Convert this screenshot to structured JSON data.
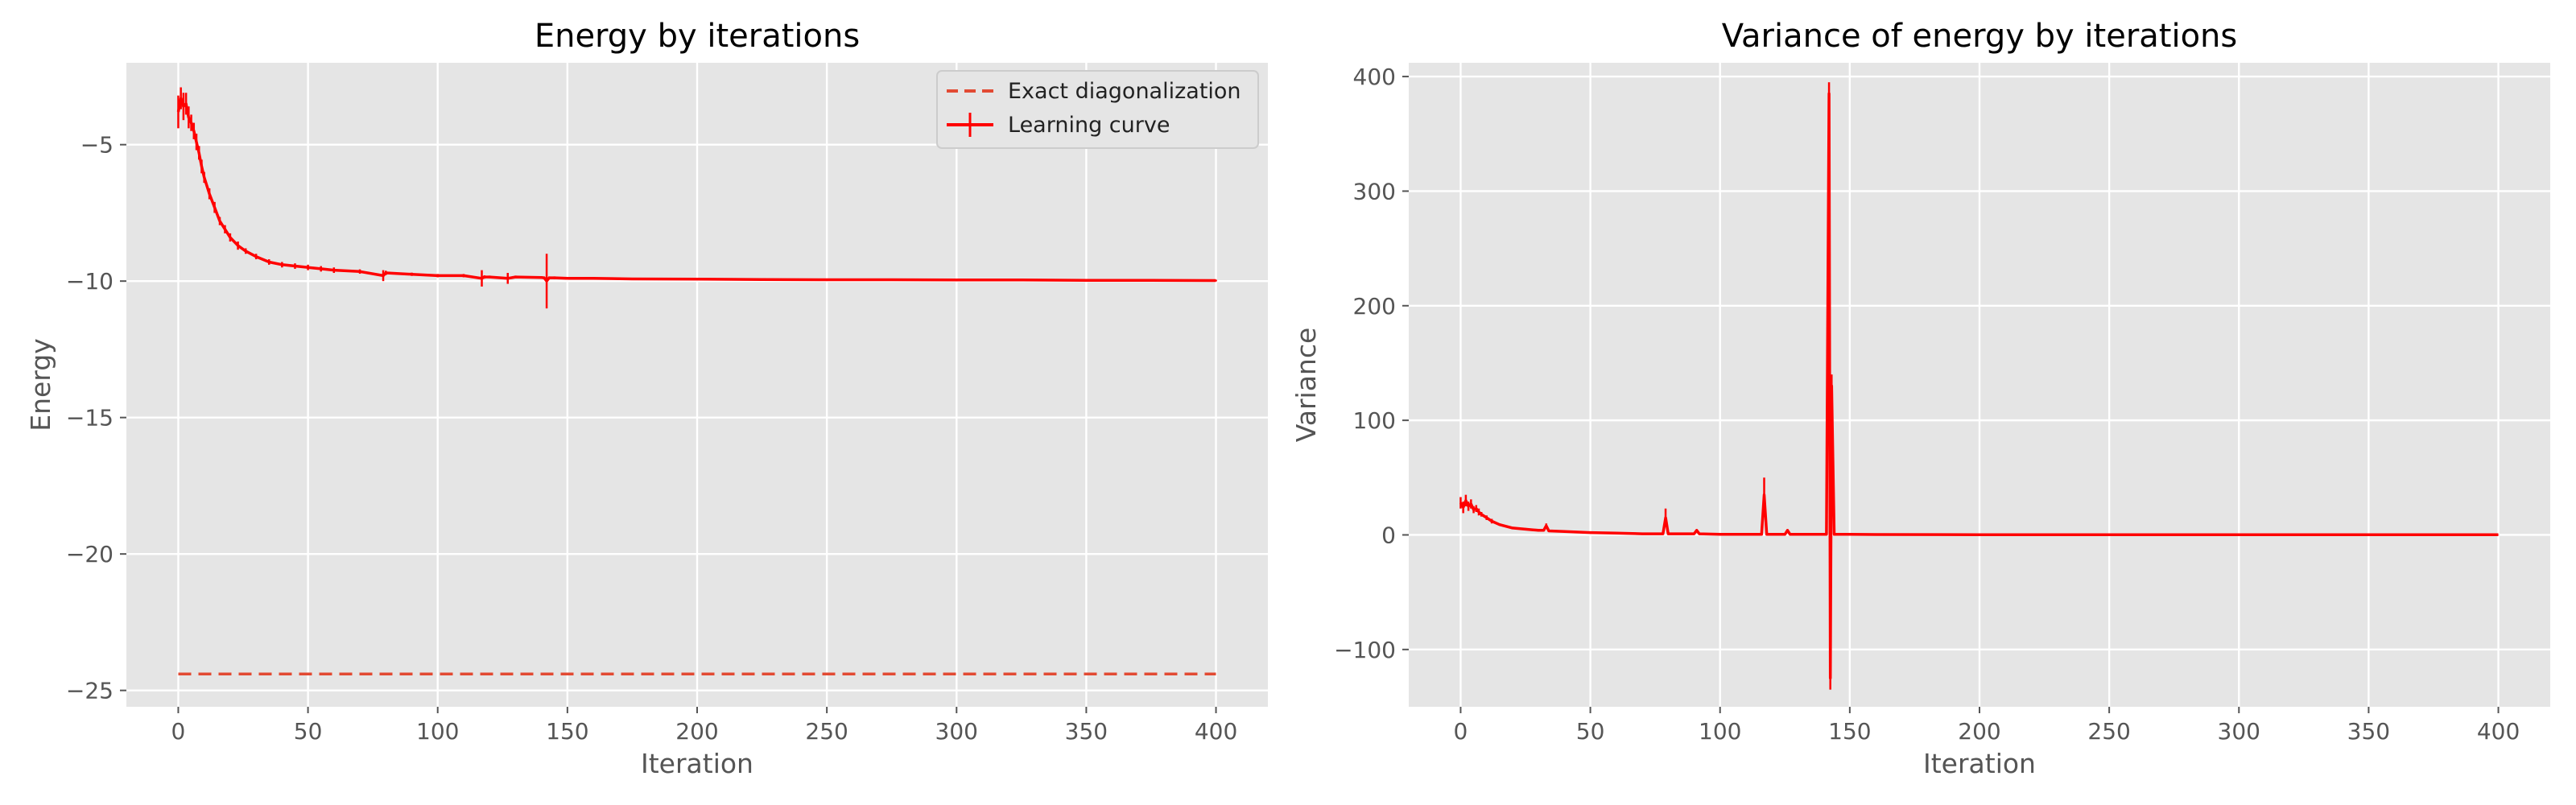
{
  "chart_data": [
    {
      "type": "line",
      "title": "Energy by iterations",
      "xlabel": "Iteration",
      "ylabel": "Energy",
      "xlim": [
        -20,
        420
      ],
      "ylim": [
        -25.6,
        -2.0
      ],
      "xticks": [
        0,
        50,
        100,
        150,
        200,
        250,
        300,
        350,
        400
      ],
      "yticks": [
        -25,
        -20,
        -15,
        -10,
        -5
      ],
      "xtick_labels": [
        "0",
        "50",
        "100",
        "150",
        "200",
        "250",
        "300",
        "350",
        "400"
      ],
      "ytick_labels": [
        "−25",
        "−20",
        "−15",
        "−10",
        "−5"
      ],
      "grid": true,
      "legend": "top-right",
      "series": [
        {
          "name": "Exact diagonalization",
          "style": "dashed",
          "color": "#e24a33",
          "x": [
            0,
            400
          ],
          "y": [
            -24.4,
            -24.4
          ]
        },
        {
          "name": "Learning curve",
          "style": "solid-errorbar",
          "color": "#ff0000",
          "x": [
            0,
            1,
            2,
            3,
            4,
            5,
            6,
            7,
            8,
            9,
            10,
            12,
            14,
            16,
            18,
            20,
            23,
            26,
            30,
            35,
            40,
            45,
            50,
            55,
            60,
            70,
            79,
            80,
            90,
            100,
            110,
            117,
            118,
            120,
            127,
            130,
            140,
            141,
            142,
            143,
            145,
            150,
            160,
            175,
            200,
            225,
            250,
            275,
            300,
            325,
            350,
            375,
            400
          ],
          "y": [
            -3.8,
            -3.3,
            -3.6,
            -3.5,
            -4.0,
            -4.2,
            -4.5,
            -4.9,
            -5.3,
            -5.8,
            -6.2,
            -6.8,
            -7.3,
            -7.8,
            -8.1,
            -8.4,
            -8.7,
            -8.9,
            -9.1,
            -9.3,
            -9.4,
            -9.45,
            -9.5,
            -9.55,
            -9.6,
            -9.65,
            -9.8,
            -9.7,
            -9.75,
            -9.8,
            -9.8,
            -9.9,
            -9.85,
            -9.85,
            -9.9,
            -9.85,
            -9.87,
            -9.88,
            -10.0,
            -9.88,
            -9.88,
            -9.9,
            -9.9,
            -9.92,
            -9.93,
            -9.94,
            -9.95,
            -9.95,
            -9.96,
            -9.96,
            -9.97,
            -9.97,
            -9.98
          ],
          "err": [
            0.6,
            0.4,
            0.5,
            0.4,
            0.4,
            0.3,
            0.3,
            0.3,
            0.25,
            0.25,
            0.2,
            0.2,
            0.2,
            0.15,
            0.15,
            0.15,
            0.15,
            0.1,
            0.1,
            0.1,
            0.1,
            0.1,
            0.1,
            0.1,
            0.1,
            0.08,
            0.2,
            0.08,
            0.06,
            0.06,
            0.06,
            0.3,
            0.06,
            0.05,
            0.2,
            0.05,
            0.05,
            0.05,
            1.0,
            0.05,
            0.05,
            0.04,
            0.04,
            0.04,
            0.04,
            0.03,
            0.03,
            0.03,
            0.03,
            0.03,
            0.03,
            0.03,
            0.03
          ]
        }
      ]
    },
    {
      "type": "line",
      "title": "Variance of energy by iterations",
      "xlabel": "Iteration",
      "ylabel": "Variance",
      "xlim": [
        -20,
        420
      ],
      "ylim": [
        -150,
        412
      ],
      "xticks": [
        0,
        50,
        100,
        150,
        200,
        250,
        300,
        350,
        400
      ],
      "yticks": [
        -100,
        0,
        100,
        200,
        300,
        400
      ],
      "xtick_labels": [
        "0",
        "50",
        "100",
        "150",
        "200",
        "250",
        "300",
        "350",
        "400"
      ],
      "ytick_labels": [
        "−100",
        "0",
        "100",
        "200",
        "300",
        "400"
      ],
      "grid": true,
      "series": [
        {
          "color": "#ff0000",
          "x": [
            0,
            1,
            2,
            3,
            4,
            5,
            6,
            7,
            8,
            10,
            12,
            15,
            20,
            25,
            30,
            32,
            33,
            34,
            40,
            50,
            60,
            70,
            78,
            79,
            80,
            90,
            91,
            92,
            100,
            110,
            116,
            117,
            118,
            125,
            126,
            127,
            135,
            140,
            141,
            142,
            142.5,
            143,
            144,
            150,
            160,
            200,
            250,
            300,
            350,
            400
          ],
          "y": [
            28,
            24,
            30,
            25,
            27,
            22,
            23,
            20,
            18,
            15,
            12,
            9,
            6,
            5,
            4,
            4,
            8,
            3.5,
            3,
            2,
            1.5,
            1,
            1,
            15,
            1,
            1,
            4,
            1,
            0.5,
            0.5,
            0.5,
            35,
            0.5,
            0.5,
            4,
            0.5,
            0.5,
            0.5,
            0.5,
            385,
            -125,
            130,
            0.5,
            0.5,
            0.3,
            0.2,
            0.2,
            0.2,
            0.2,
            0.2
          ],
          "err": [
            5,
            5,
            5,
            4,
            4,
            3,
            3,
            3,
            2,
            2,
            2,
            1,
            1,
            1,
            1,
            1,
            2,
            1,
            0.5,
            0.5,
            0.5,
            0.5,
            0.5,
            8,
            0.5,
            0.3,
            1,
            0.3,
            0.3,
            0.3,
            0.3,
            15,
            0.3,
            0.3,
            1,
            0.3,
            0.3,
            0.3,
            0.3,
            10,
            10,
            10,
            0.3,
            0.2,
            0.2,
            0.1,
            0.1,
            0.1,
            0.1,
            0.1
          ]
        }
      ]
    }
  ]
}
